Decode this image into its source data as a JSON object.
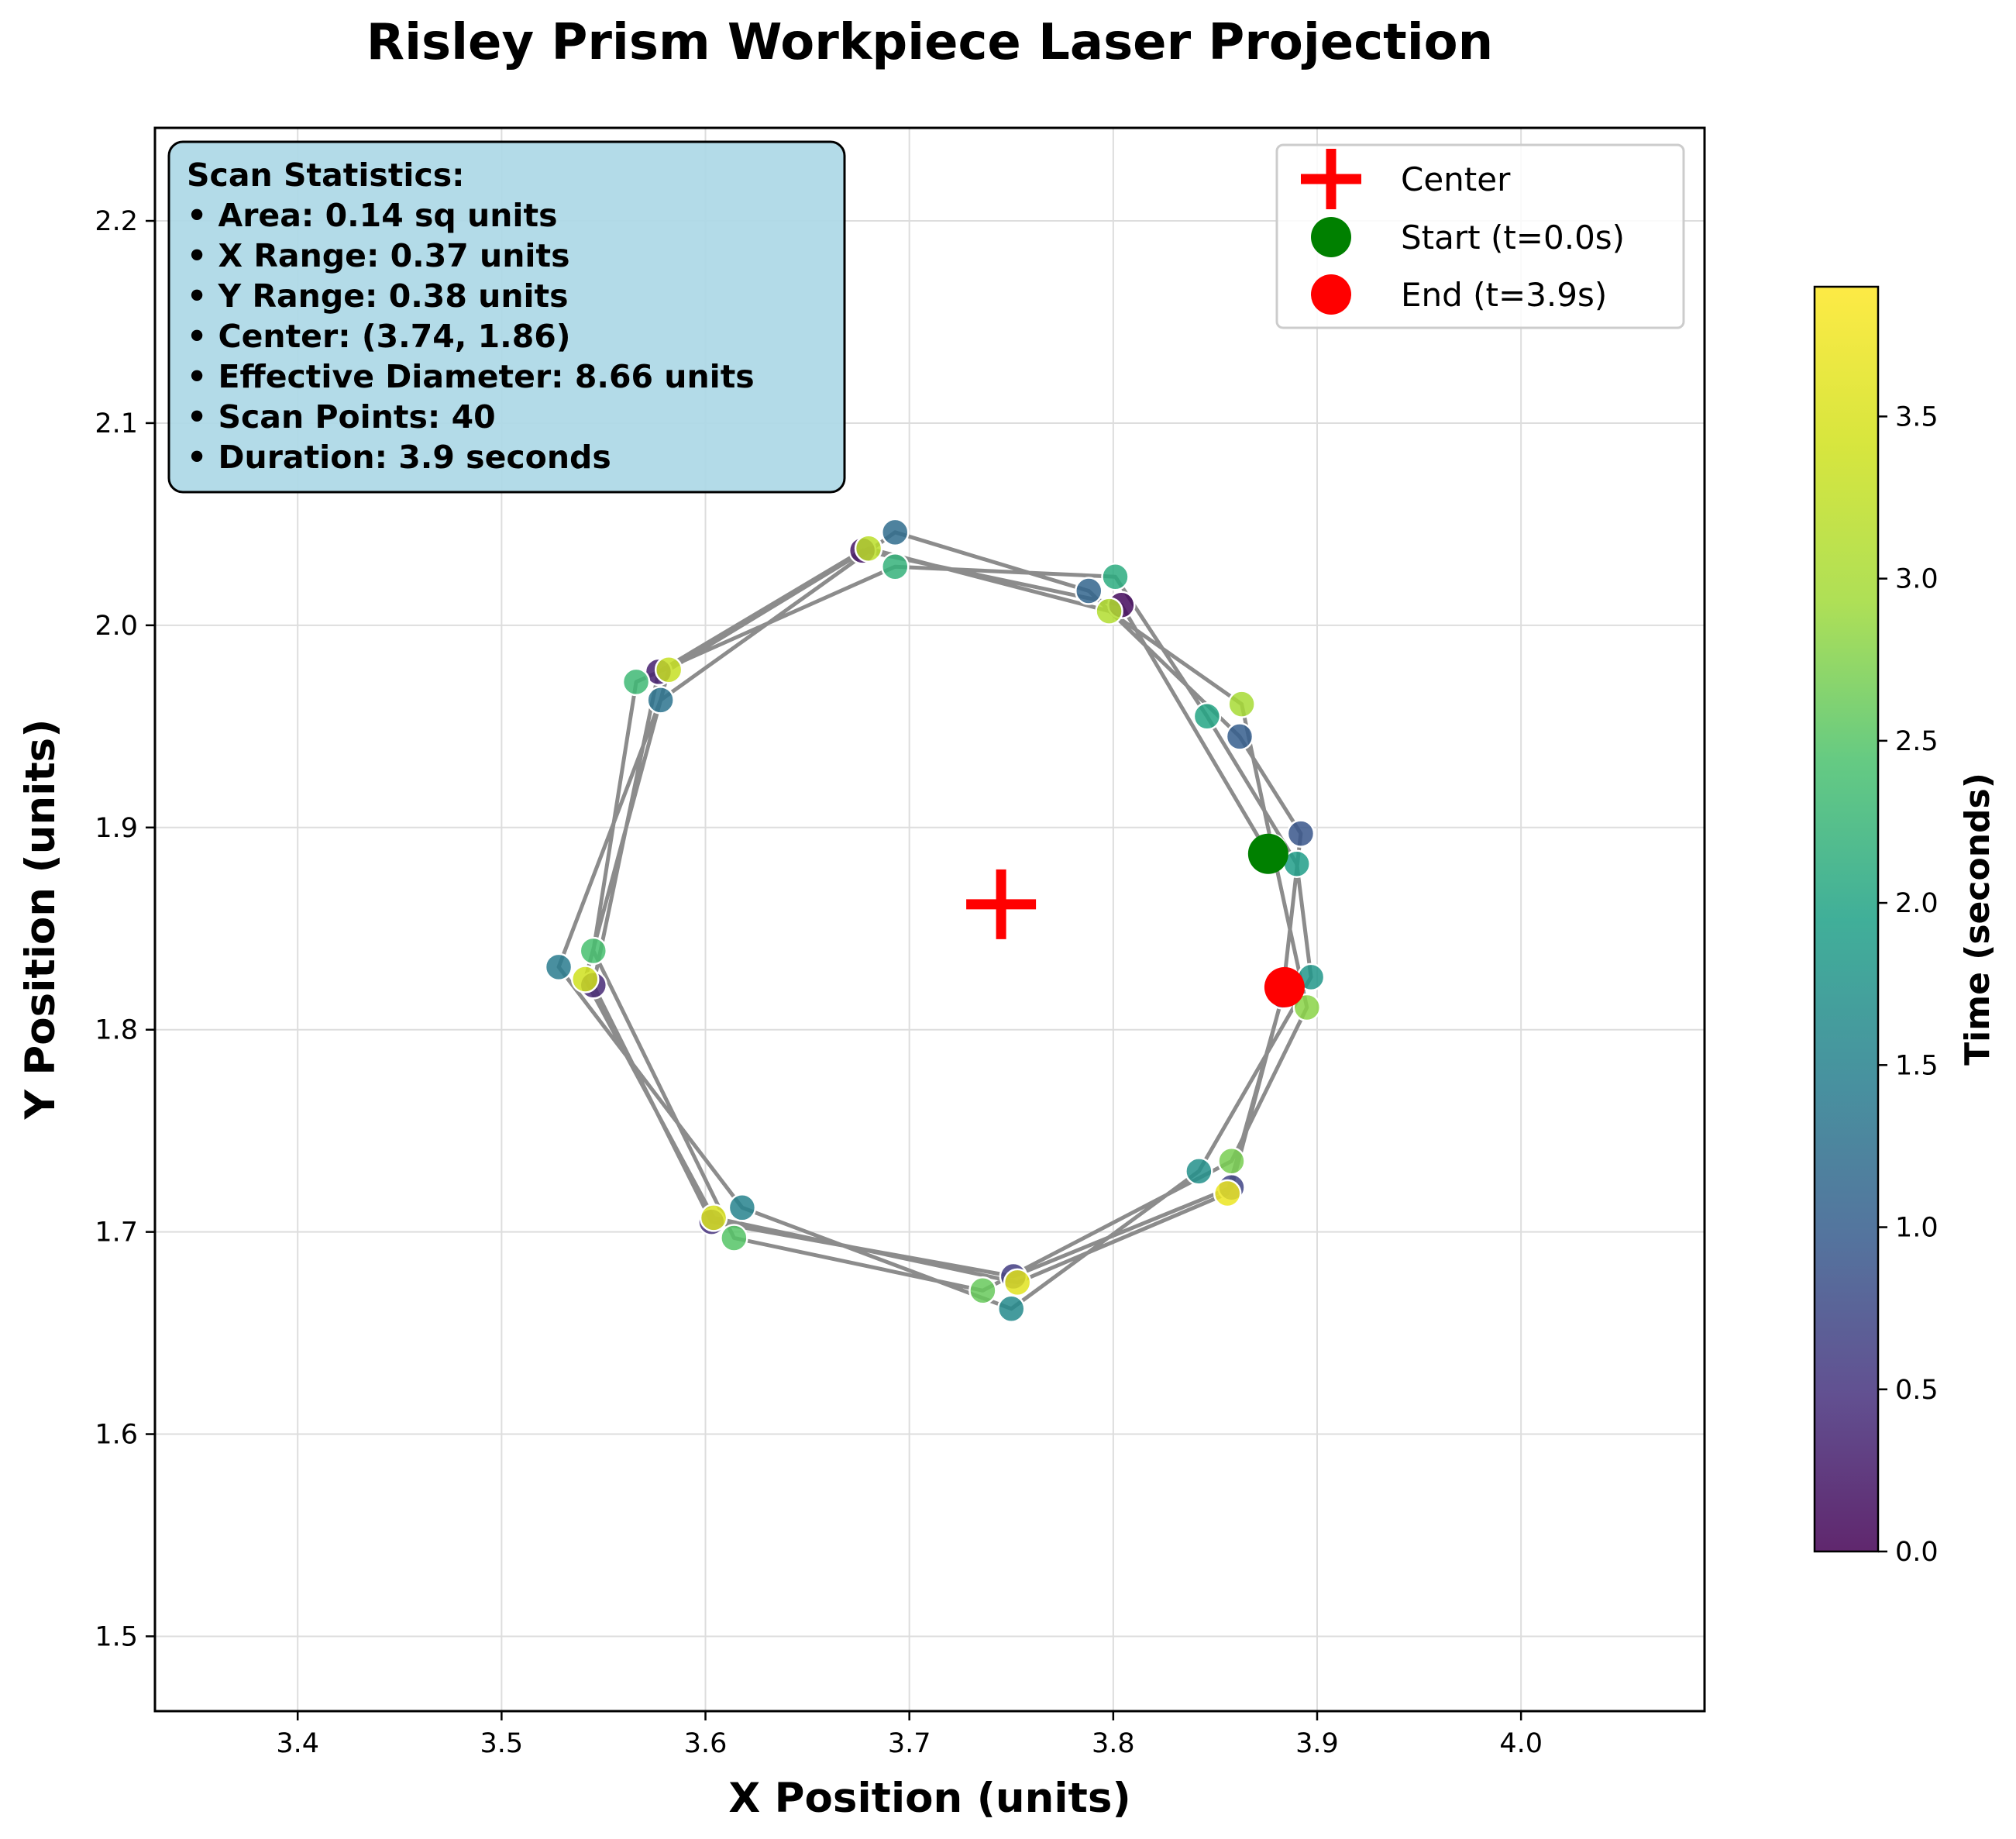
{
  "chart_data": {
    "type": "scatter",
    "title": "Risley Prism Workpiece Laser Projection",
    "xlabel": "X Position (units)",
    "ylabel": "Y Position (units)",
    "xlim": [
      3.33,
      4.09
    ],
    "ylim": [
      1.463,
      2.246
    ],
    "xticks": [
      3.4,
      3.5,
      3.6,
      3.7,
      3.8,
      3.9,
      4.0
    ],
    "yticks": [
      1.5,
      1.6,
      1.7,
      1.8,
      1.9,
      2.0,
      2.1,
      2.2
    ],
    "grid": true,
    "colorbar": {
      "label": "Time (seconds)",
      "colormap": "viridis",
      "range": [
        0.0,
        3.9
      ],
      "ticks": [
        0.0,
        0.5,
        1.0,
        1.5,
        2.0,
        2.5,
        3.0,
        3.5
      ]
    },
    "scan_path": {
      "line_color": "#8c8c8c",
      "t": [
        0.0,
        0.1,
        0.2,
        0.3,
        0.4,
        0.5,
        0.6,
        0.7,
        0.8,
        0.9,
        1.0,
        1.1,
        1.2,
        1.3,
        1.4,
        1.5,
        1.6,
        1.7,
        1.8,
        1.9,
        2.0,
        2.1,
        2.2,
        2.3,
        2.4,
        2.5,
        2.6,
        2.7,
        2.8,
        2.9,
        3.0,
        3.1,
        3.2,
        3.3,
        3.4,
        3.5,
        3.6,
        3.7,
        3.8,
        3.9
      ],
      "x": [
        3.876,
        3.804,
        3.677,
        3.577,
        3.545,
        3.603,
        3.751,
        3.858,
        3.883,
        3.892,
        3.862,
        3.788,
        3.693,
        3.578,
        3.528,
        3.618,
        3.75,
        3.842,
        3.897,
        3.89,
        3.846,
        3.801,
        3.693,
        3.566,
        3.545,
        3.614,
        3.736,
        3.858,
        3.895,
        3.878,
        3.863,
        3.798,
        3.68,
        3.582,
        3.541,
        3.604,
        3.753,
        3.856,
        3.884,
        3.884
      ],
      "y": [
        1.887,
        2.01,
        2.037,
        1.977,
        1.822,
        1.705,
        1.678,
        1.722,
        1.817,
        1.897,
        1.945,
        2.017,
        2.046,
        1.963,
        1.831,
        1.712,
        1.662,
        1.73,
        1.826,
        1.882,
        1.955,
        2.024,
        2.029,
        1.972,
        1.839,
        1.697,
        1.671,
        1.735,
        1.811,
        1.89,
        1.961,
        2.007,
        2.038,
        1.978,
        1.825,
        1.707,
        1.675,
        1.719,
        1.82,
        1.821
      ]
    },
    "center": {
      "label": "Center",
      "x": 3.745,
      "y": 1.862,
      "color": "#ff0000"
    },
    "start": {
      "label": "Start (t=0.0s)",
      "x": 3.876,
      "y": 1.887,
      "color": "#008000"
    },
    "end": {
      "label": "End (t=3.9s)",
      "x": 3.884,
      "y": 1.821,
      "color": "#ff0000"
    },
    "legend_position": "upper right",
    "stats_box": {
      "background": "#add8e6",
      "lines": [
        "Scan Statistics:",
        "• Area: 0.14 sq units",
        "• X Range: 0.37 units",
        "• Y Range: 0.38 units",
        "• Center: (3.74, 1.86)",
        "• Effective Diameter: 8.66 units",
        "• Scan Points: 40",
        "• Duration: 3.9 seconds"
      ]
    }
  }
}
